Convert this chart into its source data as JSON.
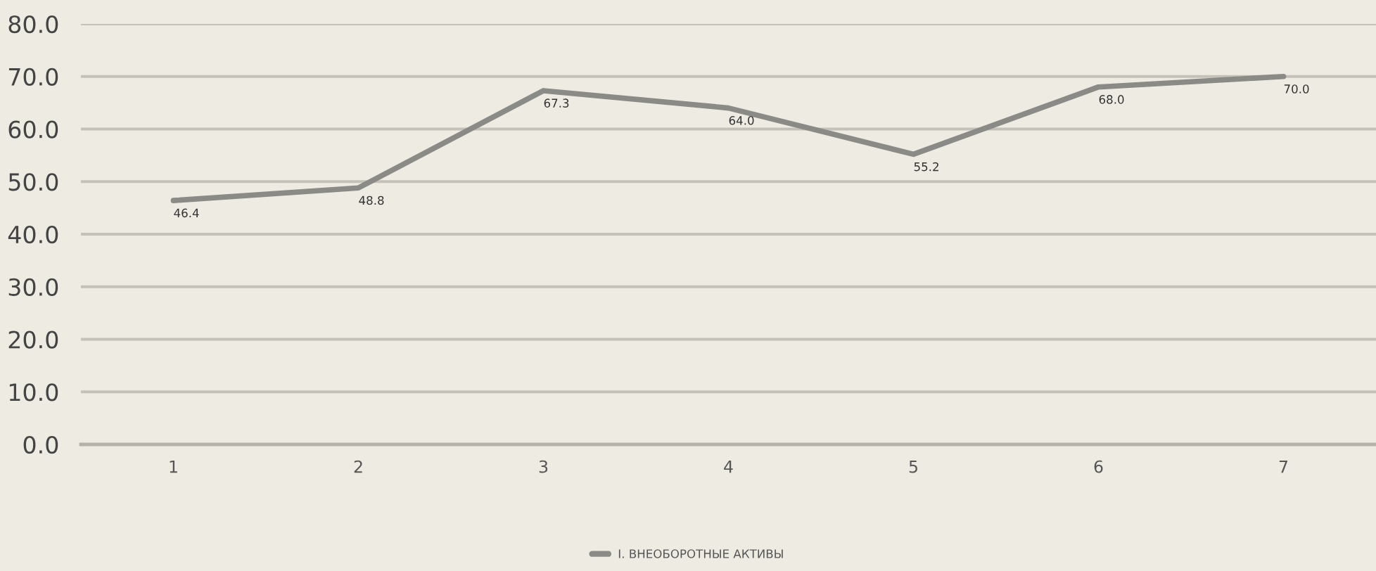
{
  "chart_data": {
    "type": "line",
    "categories": [
      "1",
      "2",
      "3",
      "4",
      "5",
      "6",
      "7"
    ],
    "series": [
      {
        "name": "I. ВНЕОБОРОТНЫЕ АКТИВЫ",
        "color": "#8a8a87",
        "values": [
          46.4,
          48.8,
          67.3,
          64.0,
          55.2,
          68.0,
          70.0
        ],
        "value_labels": [
          "46.4",
          "48.8",
          "67.3",
          "64.0",
          "55.2",
          "68.0",
          "70.0"
        ]
      }
    ],
    "ylim": [
      0,
      80
    ],
    "yticks": [
      {
        "value": 0,
        "label": "0.0"
      },
      {
        "value": 10,
        "label": "10.0"
      },
      {
        "value": 20,
        "label": "20.0"
      },
      {
        "value": 30,
        "label": "30.0"
      },
      {
        "value": 40,
        "label": "40.0"
      },
      {
        "value": 50,
        "label": "50.0"
      },
      {
        "value": 60,
        "label": "60.0"
      },
      {
        "value": 70,
        "label": "70.0"
      },
      {
        "value": 80,
        "label": "80.0"
      }
    ],
    "grid": "y",
    "legend": "bottom",
    "marker": "none",
    "line_style": "solid"
  }
}
